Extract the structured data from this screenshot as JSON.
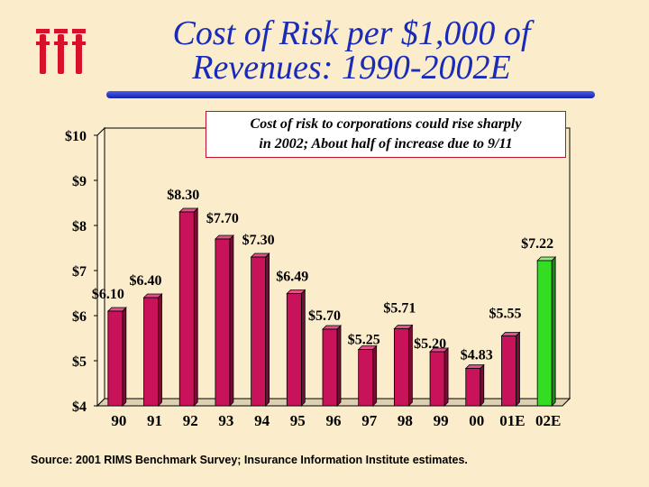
{
  "title_line1": "Cost of Risk per $1,000 of",
  "title_line2": "Revenues: 1990-2002E",
  "callout_line1": "Cost of risk to corporations could rise sharply",
  "callout_line2": "in 2002; About half of increase due to 9/11",
  "source": "Source: 2001 RIMS Benchmark Survey; Insurance Information Institute estimates.",
  "logo_icon": "iii-logo-icon",
  "colors": {
    "background": "#fbeccb",
    "title": "#1a2bb8",
    "bar": "#c8135a",
    "bar_highlight": "#33dd22",
    "logo": "#d8102a"
  },
  "chart_data": {
    "type": "bar",
    "categories": [
      "90",
      "91",
      "92",
      "93",
      "94",
      "95",
      "96",
      "97",
      "98",
      "99",
      "00",
      "01E",
      "02E"
    ],
    "values": [
      6.1,
      6.4,
      8.3,
      7.7,
      7.3,
      6.49,
      5.7,
      5.25,
      5.71,
      5.2,
      4.83,
      5.55,
      7.22
    ],
    "value_labels": [
      "$6.10",
      "$6.40",
      "$8.30",
      "$7.70",
      "$7.30",
      "$6.49",
      "$5.70",
      "$5.25",
      "$5.71",
      "$5.20",
      "$4.83",
      "$5.55",
      "$7.22"
    ],
    "highlight_category": "02E",
    "ylim": [
      4,
      10
    ],
    "yticks": [
      4,
      5,
      6,
      7,
      8,
      9,
      10
    ],
    "ytick_labels": [
      "$4",
      "$5",
      "$6",
      "$7",
      "$8",
      "$9",
      "$10"
    ],
    "grid": false,
    "legend": "none"
  }
}
